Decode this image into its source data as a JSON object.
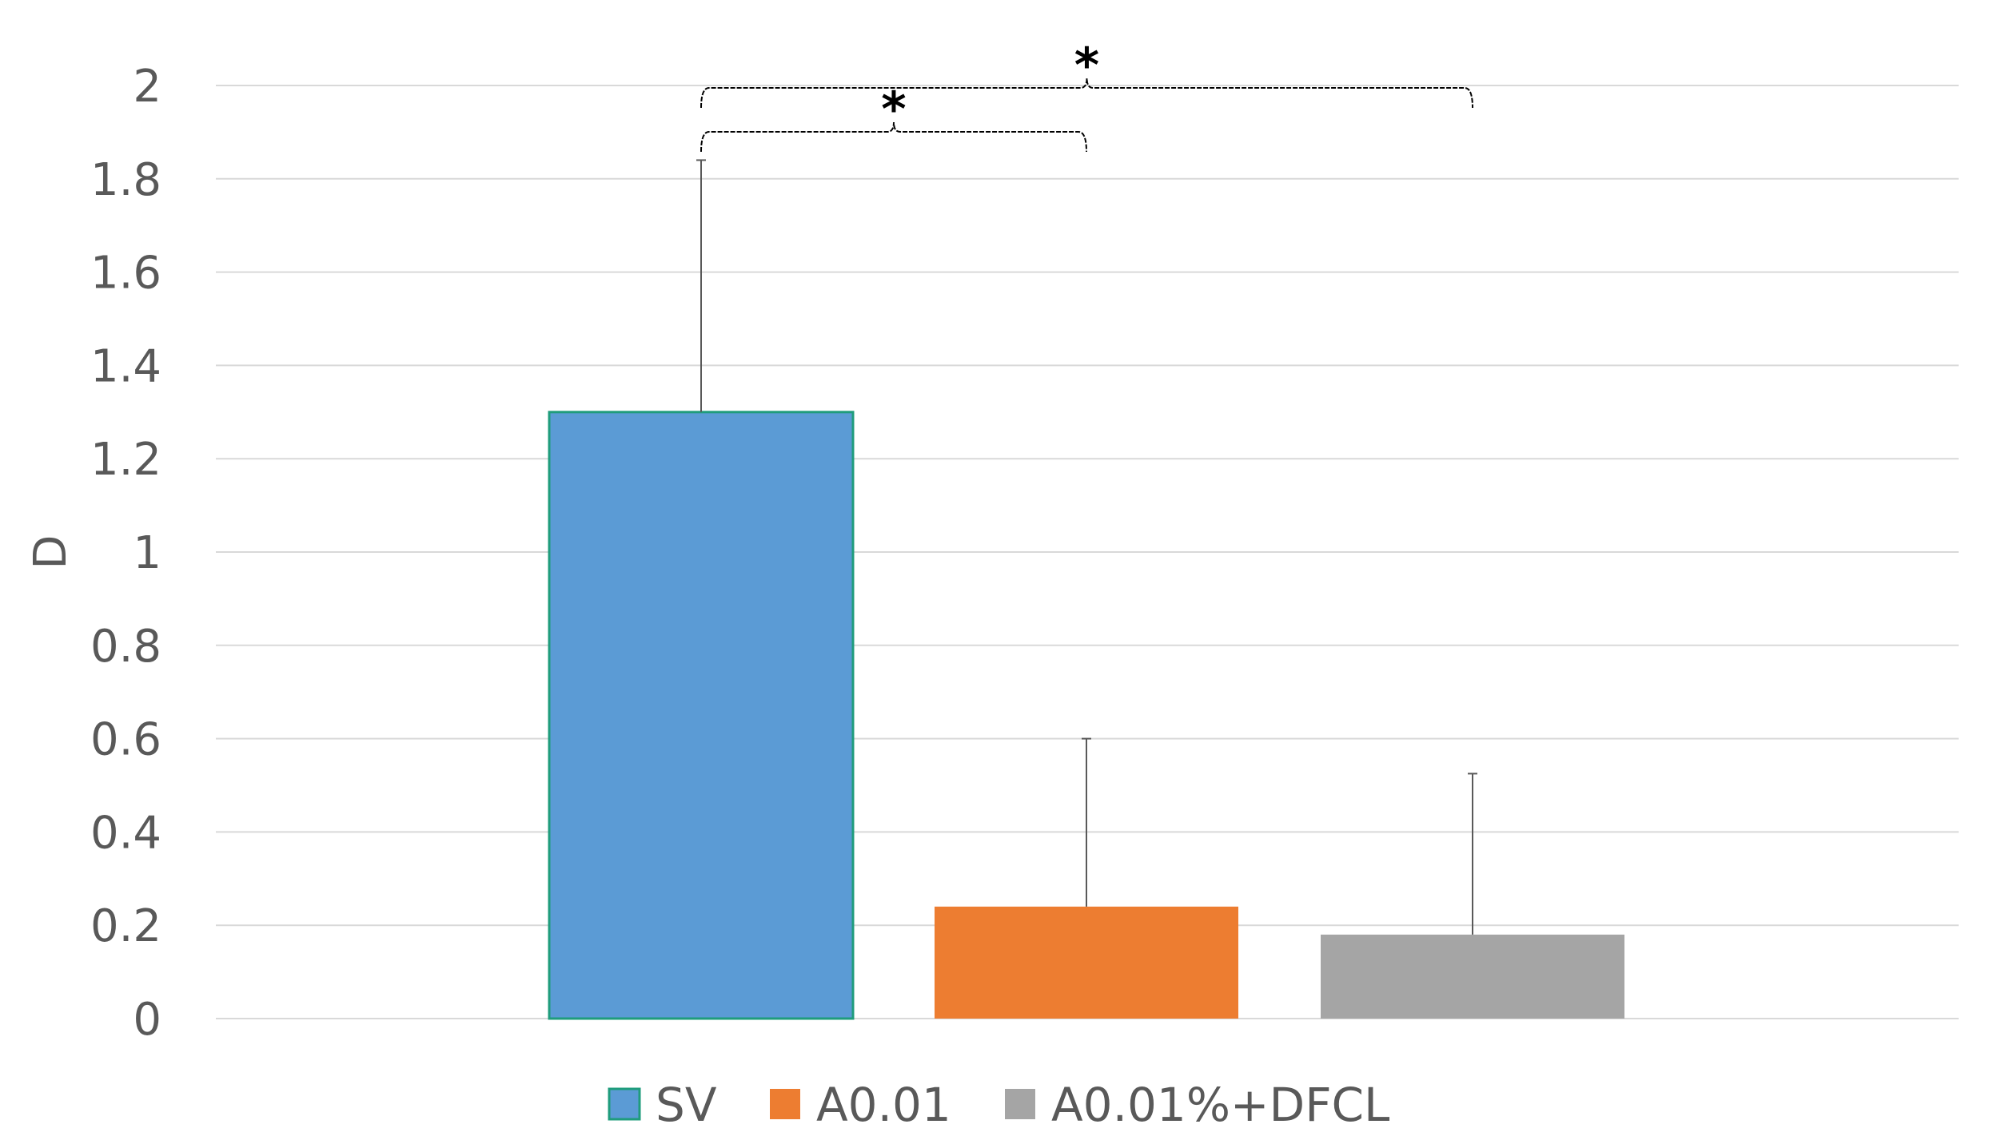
{
  "chart_data": {
    "type": "bar",
    "ylabel": "D",
    "ylim": [
      0,
      2
    ],
    "yticks": [
      "0",
      "0.2",
      "0.4",
      "0.6",
      "0.8",
      "1",
      "1.2",
      "1.4",
      "1.6",
      "1.8",
      "2"
    ],
    "grid": true,
    "legend_position": "bottom",
    "series": [
      {
        "name": "SV",
        "value": 1.3,
        "error_upper": 1.84,
        "color": "#5b9bd5",
        "border": "#1f9c7c"
      },
      {
        "name": "A0.01",
        "value": 0.24,
        "error_upper": 0.6,
        "color": "#ed7d31"
      },
      {
        "name": "A0.01%+DFCL",
        "value": 0.18,
        "error_upper": 0.525,
        "color": "#a5a5a5"
      }
    ],
    "significance": [
      {
        "from": "SV",
        "to": "A0.01",
        "label": "*"
      },
      {
        "from": "SV",
        "to": "A0.01%+DFCL",
        "label": "*"
      }
    ]
  }
}
